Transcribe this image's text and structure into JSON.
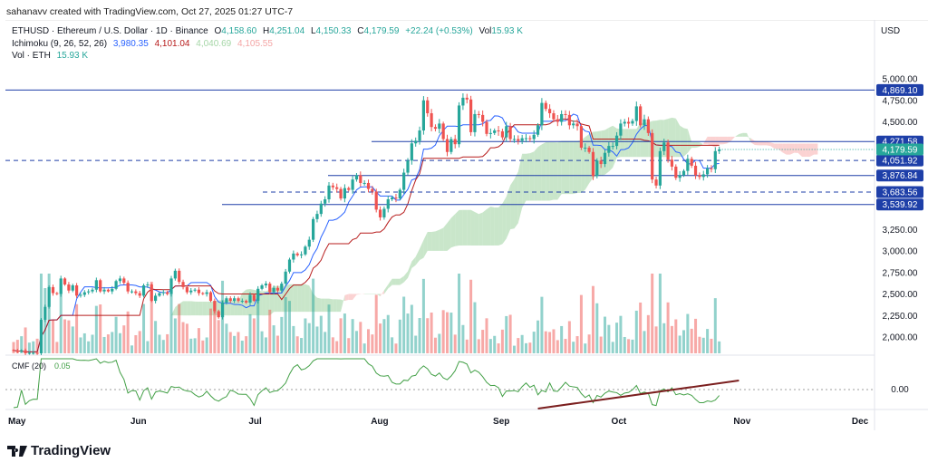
{
  "credit": "sahanavv created with TradingView.com, Oct 27, 2025 01:27 UTC-7",
  "legend": {
    "symbol": "ETHUSD · Ethereum / U.S. Dollar · 1D · Binance",
    "o_label": "O",
    "o": "4,158.60",
    "h_label": "H",
    "h": "4,251.04",
    "l_label": "L",
    "l": "4,150.33",
    "c_label": "C",
    "c": "4,179.59",
    "change": "+22.24 (+0.53%)",
    "vol_label": "Vol",
    "vol": "15.93 K",
    "ichimoku": "Ichimoku (9, 26, 52, 26)",
    "ich_v1": "3,980.35",
    "ich_v2": "4,101.04",
    "ich_v3": "4,040.69",
    "ich_v4": "4,105.55",
    "vol_ind": "Vol · ETH",
    "vol_ind_v": "15.93 K"
  },
  "cmf": {
    "label": "CMF (20)",
    "value": "0.05",
    "zero_label": "0.00"
  },
  "currency": "USD",
  "brand": "TradingView",
  "colors": {
    "up": "#26a69a",
    "down": "#ef5350",
    "tenkan": "#2962ff",
    "kijun": "#b71c1c",
    "cloud_up": "#a5d6a7",
    "cloud_down": "#f8b4b4",
    "level": "#1e3fa8",
    "last": "#26a69a",
    "cmf": "#43a047",
    "trend": "#7b1f1f"
  },
  "chart_data": {
    "type": "candlestick",
    "start_date": "2025-05-01",
    "x_ticks": [
      "May",
      "Jun",
      "Jul",
      "Aug",
      "Sep",
      "Oct",
      "Nov",
      "Dec"
    ],
    "y_ticks": [
      "5,000.00",
      "4,750.00",
      "4,500.00",
      "3,250.00",
      "3,000.00",
      "2,750.00",
      "2,500.00",
      "2,250.00",
      "2,000.00"
    ],
    "ylim": [
      1850,
      5250
    ],
    "closes": [
      1840,
      1835,
      1845,
      1810,
      1815,
      1815,
      1810,
      2200,
      2350,
      2580,
      2510,
      2500,
      2680,
      2610,
      2540,
      2600,
      2480,
      2490,
      2520,
      2530,
      2550,
      2660,
      2530,
      2550,
      2530,
      2560,
      2650,
      2680,
      2630,
      2530,
      2530,
      2510,
      2480,
      2600,
      2610,
      2420,
      2480,
      2510,
      2520,
      2500,
      2680,
      2770,
      2640,
      2580,
      2520,
      2540,
      2550,
      2510,
      2500,
      2520,
      2420,
      2300,
      2230,
      2400,
      2450,
      2420,
      2450,
      2420,
      2420,
      2400,
      2490,
      2420,
      2560,
      2600,
      2620,
      2520,
      2570,
      2540,
      2620,
      2760,
      2900,
      2970,
      2950,
      2960,
      3050,
      3130,
      3370,
      3430,
      3550,
      3600,
      3760,
      3740,
      3720,
      3610,
      3730,
      3710,
      3830,
      3880,
      3790,
      3790,
      3720,
      3690,
      3480,
      3390,
      3490,
      3600,
      3620,
      3610,
      3710,
      3910,
      4050,
      4250,
      4280,
      4400,
      4750,
      4600,
      4440,
      4420,
      4480,
      4300,
      4150,
      4300,
      4240,
      4690,
      4780,
      4760,
      4380,
      4590,
      4580,
      4500,
      4360,
      4370,
      4400,
      4390,
      4320,
      4450,
      4300,
      4300,
      4280,
      4310,
      4310,
      4300,
      4350,
      4460,
      4720,
      4650,
      4600,
      4530,
      4500,
      4590,
      4580,
      4460,
      4480,
      4450,
      4200,
      4200,
      4150,
      3870,
      4050,
      4010,
      4140,
      4220,
      4220,
      4340,
      4480,
      4500,
      4480,
      4510,
      4680,
      4460,
      4530,
      4370,
      3830,
      3760,
      4160,
      4260,
      4060,
      3980,
      3850,
      3880,
      3930,
      4070,
      3990,
      3880,
      3860,
      3890,
      3960,
      3950,
      4160,
      4179.59
    ],
    "levels": [
      {
        "price": 4869.1,
        "label": "4,869.10",
        "style": "solid"
      },
      {
        "price": 4271.58,
        "label": "4,271.58",
        "style": "solid"
      },
      {
        "price": 4051.92,
        "label": "4,051.92",
        "style": "dashed"
      },
      {
        "price": 3876.84,
        "label": "3,876.84",
        "style": "solid"
      },
      {
        "price": 3683.56,
        "label": "3,683.56",
        "style": "dashed"
      },
      {
        "price": 3539.92,
        "label": "3,539.92",
        "style": "solid"
      }
    ],
    "last_price": {
      "price": 4179.59,
      "label": "4,179.59"
    }
  }
}
